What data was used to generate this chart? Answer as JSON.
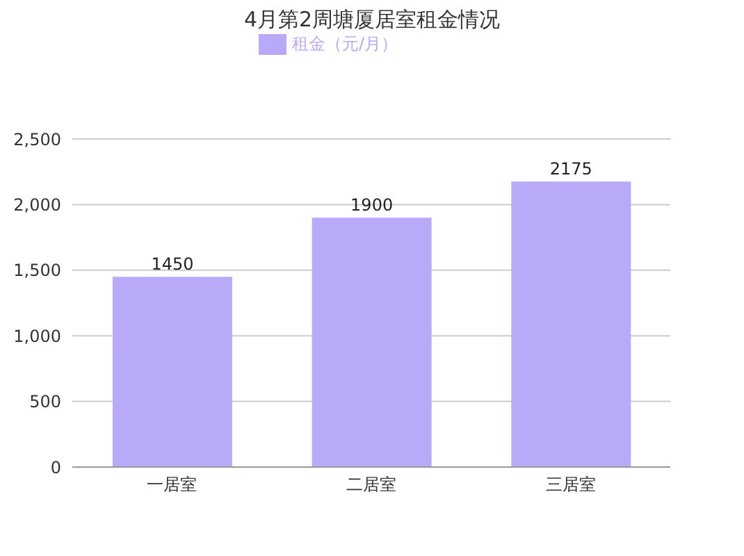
{
  "chart_data": {
    "type": "bar",
    "title": "4月第2周塘厦居室租金情况",
    "categories": [
      "一居室",
      "二居室",
      "三居室"
    ],
    "series": [
      {
        "name": "租金（元/月）",
        "color": "#b8a9f9",
        "values": [
          1450,
          1900,
          2175
        ]
      }
    ],
    "ylim": [
      0,
      2500
    ],
    "yticks": [
      0,
      {
        "value": 500,
        "label": "500"
      },
      {
        "value": 1000,
        "label": "1,000"
      },
      {
        "value": 1500,
        "label": "1,500"
      },
      {
        "value": 2000,
        "label": "2,000"
      },
      {
        "value": 2500,
        "label": "2,500"
      }
    ],
    "grid": "y",
    "legend": "top",
    "data_labels": true
  }
}
